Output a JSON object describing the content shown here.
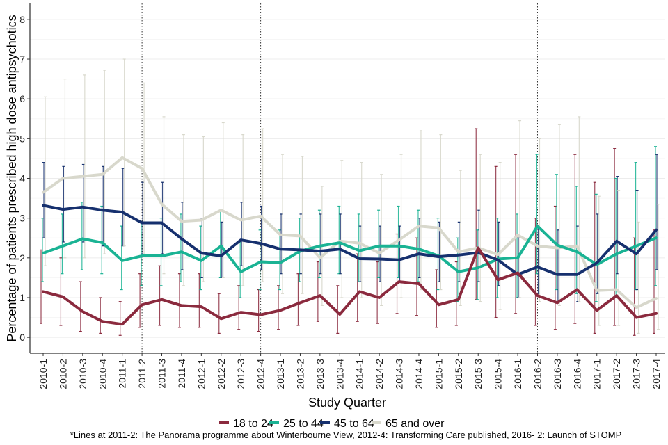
{
  "chart_data": {
    "type": "line",
    "title": "",
    "xlabel": "Study Quarter",
    "ylabel": "Percentage of patients prescribed high dose antipsychotics",
    "ylim": [
      -0.4,
      8.4
    ],
    "yticks": [
      0,
      1,
      2,
      3,
      4,
      5,
      6,
      7,
      8
    ],
    "grid": true,
    "legend_position": "bottom",
    "categories": [
      "2010-1",
      "2010-2",
      "2010-3",
      "2010-4",
      "2011-1",
      "2011-2",
      "2011-3",
      "2011-4",
      "2012-1",
      "2012-2",
      "2012-3",
      "2012-4",
      "2013-1",
      "2013-2",
      "2013-3",
      "2013-4",
      "2014-1",
      "2014-2",
      "2014-3",
      "2014-4",
      "2015-1",
      "2015-2",
      "2015-3",
      "2015-4",
      "2016-1",
      "2016-2",
      "2016-3",
      "2016-4",
      "2017-1",
      "2017-2",
      "2017-3",
      "2017-4"
    ],
    "vlines": [
      "2011-2",
      "2012-4",
      "2016-2"
    ],
    "caption": "*Lines at 2011-2: The Panorama programme about Winterbourne View, 2012-4: Transforming Care published, 2016- 2: Launch of STOMP",
    "series": [
      {
        "name": "18 to 24",
        "color": "#8b2a3e",
        "values": [
          1.15,
          1.02,
          0.65,
          0.4,
          0.33,
          0.82,
          0.95,
          0.8,
          0.77,
          0.47,
          0.63,
          0.57,
          0.68,
          0.87,
          1.05,
          0.58,
          1.15,
          1.0,
          1.4,
          1.35,
          0.82,
          0.95,
          2.25,
          1.45,
          1.62,
          1.05,
          0.87,
          1.2,
          0.68,
          1.05,
          0.5,
          0.6
        ],
        "lower": [
          0.35,
          0.3,
          0.15,
          0.1,
          0.05,
          0.25,
          0.3,
          0.25,
          0.25,
          0.1,
          0.2,
          0.15,
          0.2,
          0.3,
          0.4,
          0.1,
          0.4,
          0.35,
          0.6,
          0.55,
          0.25,
          0.3,
          0.95,
          0.5,
          0.6,
          0.3,
          0.2,
          0.35,
          0.1,
          0.3,
          0.05,
          0.1
        ],
        "upper": [
          2.2,
          2.0,
          1.4,
          1.0,
          0.9,
          1.6,
          1.8,
          1.6,
          1.6,
          1.1,
          1.3,
          1.2,
          1.3,
          1.6,
          1.9,
          1.3,
          2.1,
          1.9,
          2.6,
          2.5,
          1.7,
          1.9,
          5.25,
          4.3,
          4.6,
          3.0,
          3.3,
          4.6,
          3.9,
          4.75,
          2.5,
          2.7
        ]
      },
      {
        "name": "25 to 44",
        "color": "#1ab394",
        "values": [
          2.12,
          2.3,
          2.48,
          2.38,
          1.93,
          2.05,
          2.05,
          2.15,
          1.93,
          2.3,
          1.65,
          1.9,
          1.88,
          2.17,
          2.3,
          2.38,
          2.18,
          2.3,
          2.3,
          2.22,
          2.05,
          1.65,
          1.75,
          1.97,
          2.0,
          2.8,
          2.32,
          2.15,
          1.83,
          2.1,
          2.3,
          2.5
        ],
        "lower": [
          1.4,
          1.6,
          1.7,
          1.6,
          1.2,
          1.3,
          1.3,
          1.4,
          1.2,
          1.5,
          1.0,
          1.2,
          1.2,
          1.4,
          1.5,
          1.6,
          1.4,
          1.5,
          1.5,
          1.4,
          1.2,
          0.9,
          0.95,
          1.0,
          1.0,
          1.6,
          1.2,
          1.1,
          0.9,
          1.0,
          1.2,
          1.3
        ],
        "upper": [
          3.0,
          3.1,
          3.4,
          3.3,
          2.8,
          2.9,
          3.0,
          3.1,
          2.8,
          3.2,
          2.4,
          2.7,
          2.7,
          3.0,
          3.2,
          3.3,
          3.1,
          3.2,
          3.3,
          3.2,
          3.0,
          2.5,
          2.7,
          3.0,
          3.1,
          4.6,
          4.1,
          3.8,
          3.6,
          4.0,
          4.4,
          4.8
        ]
      },
      {
        "name": "45 to 64",
        "color": "#16306e",
        "values": [
          3.32,
          3.22,
          3.28,
          3.2,
          3.15,
          2.88,
          2.88,
          2.48,
          2.12,
          2.05,
          2.45,
          2.36,
          2.22,
          2.2,
          2.17,
          2.22,
          1.98,
          1.97,
          1.95,
          2.1,
          2.03,
          2.07,
          2.13,
          1.95,
          1.58,
          1.77,
          1.58,
          1.58,
          1.87,
          2.42,
          2.1,
          2.7
        ],
        "lower": [
          2.5,
          2.4,
          2.4,
          2.3,
          2.3,
          2.1,
          2.1,
          1.7,
          1.5,
          1.5,
          1.8,
          1.7,
          1.6,
          1.6,
          1.6,
          1.6,
          1.4,
          1.4,
          1.4,
          1.5,
          1.4,
          1.4,
          1.4,
          1.3,
          1.0,
          1.1,
          0.9,
          0.9,
          1.1,
          1.6,
          1.2,
          1.7
        ],
        "upper": [
          4.4,
          4.3,
          4.35,
          4.3,
          4.25,
          3.9,
          3.9,
          3.4,
          3.0,
          2.9,
          3.4,
          3.3,
          3.1,
          3.1,
          3.1,
          3.1,
          2.8,
          2.8,
          2.8,
          3.0,
          2.9,
          2.9,
          3.2,
          2.9,
          2.5,
          2.8,
          2.7,
          2.8,
          3.1,
          4.05,
          3.7,
          4.6
        ]
      },
      {
        "name": "65 and over",
        "color": "#d8d8cc",
        "values": [
          3.65,
          4.0,
          4.05,
          4.1,
          4.52,
          4.25,
          3.35,
          2.92,
          2.95,
          3.2,
          2.95,
          3.05,
          2.58,
          2.55,
          2.0,
          2.42,
          2.37,
          2.12,
          2.45,
          2.8,
          2.75,
          2.15,
          2.25,
          2.08,
          2.57,
          2.3,
          2.25,
          2.3,
          1.18,
          1.2,
          0.75,
          0.98
        ],
        "lower": [
          1.8,
          2.0,
          2.0,
          2.1,
          2.3,
          2.1,
          1.6,
          1.3,
          1.4,
          1.5,
          1.3,
          1.4,
          1.1,
          1.1,
          0.8,
          1.0,
          1.0,
          0.8,
          1.0,
          1.2,
          1.2,
          0.8,
          0.9,
          0.7,
          1.0,
          0.9,
          0.8,
          0.9,
          0.3,
          0.3,
          0.1,
          0.2
        ],
        "upper": [
          6.05,
          6.5,
          6.6,
          6.72,
          7.0,
          6.4,
          5.55,
          5.1,
          5.05,
          5.4,
          5.1,
          5.25,
          4.6,
          4.55,
          3.8,
          4.45,
          4.4,
          4.1,
          4.6,
          5.2,
          5.1,
          4.2,
          4.6,
          4.4,
          5.45,
          5.0,
          5.35,
          5.55,
          3.55,
          3.7,
          2.9,
          3.35
        ]
      }
    ]
  }
}
